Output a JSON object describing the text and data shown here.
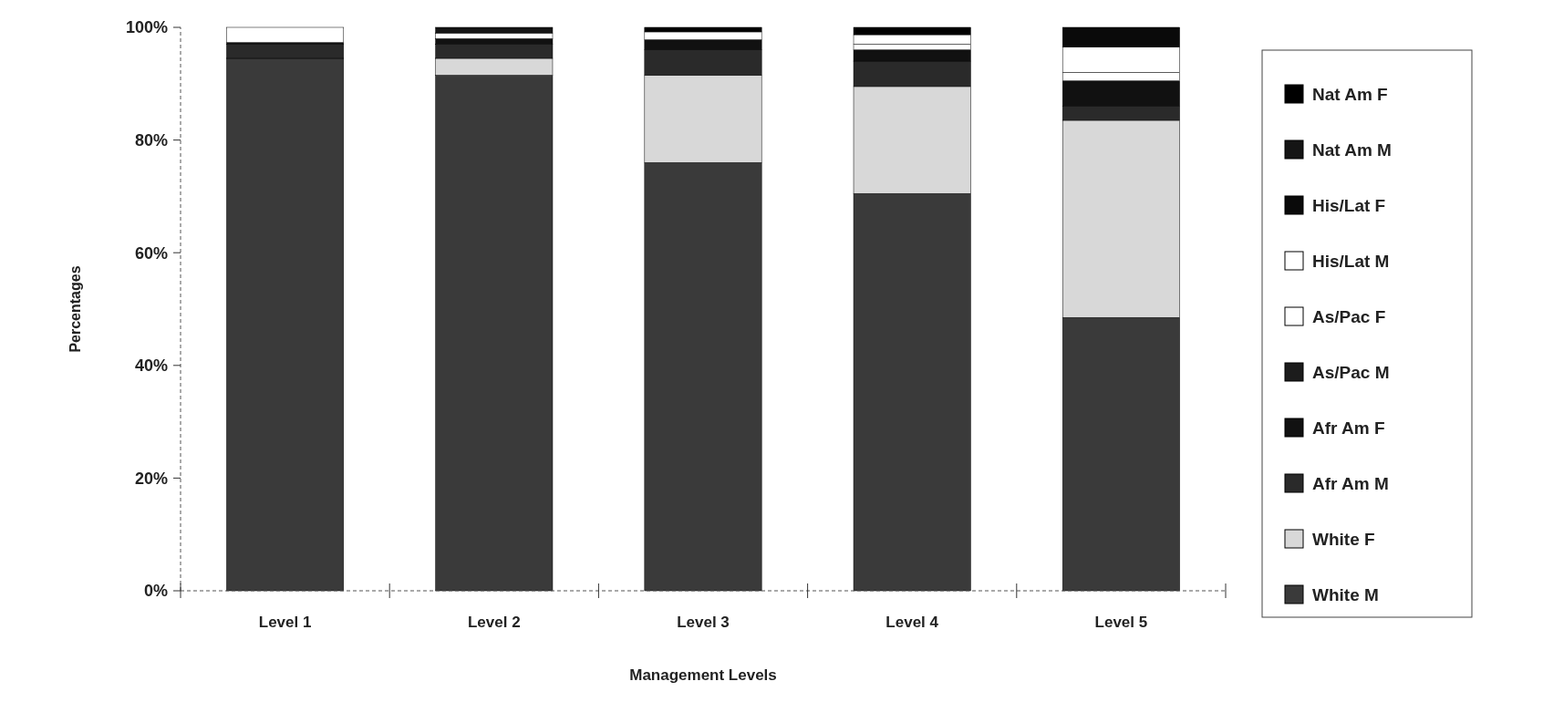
{
  "chart_data": {
    "type": "bar",
    "stacked": true,
    "xlabel": "Management Levels",
    "ylabel": "Percentages",
    "categories": [
      "Level 1",
      "Level 2",
      "Level 3",
      "Level 4",
      "Level 5"
    ],
    "ylim": [
      0,
      100
    ],
    "yticks": [
      {
        "value": 0,
        "label": "0%"
      },
      {
        "value": 20,
        "label": "20%"
      },
      {
        "value": 40,
        "label": "40%"
      },
      {
        "value": 60,
        "label": "60%"
      },
      {
        "value": 80,
        "label": "80%"
      },
      {
        "value": 100,
        "label": "100%"
      }
    ],
    "grid": false,
    "legend": "right",
    "series": [
      {
        "name": "White M",
        "color": "#3a3a3a",
        "values": [
          94.5,
          91.5,
          76,
          70.5,
          48.5
        ]
      },
      {
        "name": "White F",
        "color": "#d8d8d8",
        "values": [
          0,
          3,
          15.5,
          19,
          35
        ]
      },
      {
        "name": "Afr Am M",
        "color": "#2a2a2a",
        "values": [
          2.5,
          2.5,
          4.5,
          4.5,
          2.5
        ]
      },
      {
        "name": "Afr Am F",
        "color": "#111111",
        "values": [
          0.3,
          1,
          1.8,
          2,
          4.5
        ]
      },
      {
        "name": "As/Pac M",
        "color": "#1c1c1c",
        "values": [
          0,
          0,
          0,
          0,
          0
        ]
      },
      {
        "name": "As/Pac F",
        "color": "#ffffff",
        "values": [
          0,
          0,
          0,
          1,
          1.5
        ]
      },
      {
        "name": "His/Lat M",
        "color": "#ffffff",
        "values": [
          2.7,
          1,
          1.4,
          1.7,
          4.5
        ]
      },
      {
        "name": "His/Lat F",
        "color": "#0a0a0a",
        "values": [
          0,
          0,
          0,
          0,
          3.5
        ]
      },
      {
        "name": "Nat Am M",
        "color": "#151515",
        "values": [
          0,
          1,
          0,
          0,
          0
        ]
      },
      {
        "name": "Nat Am F",
        "color": "#000000",
        "values": [
          0,
          0,
          0.8,
          1.3,
          0
        ]
      }
    ]
  }
}
